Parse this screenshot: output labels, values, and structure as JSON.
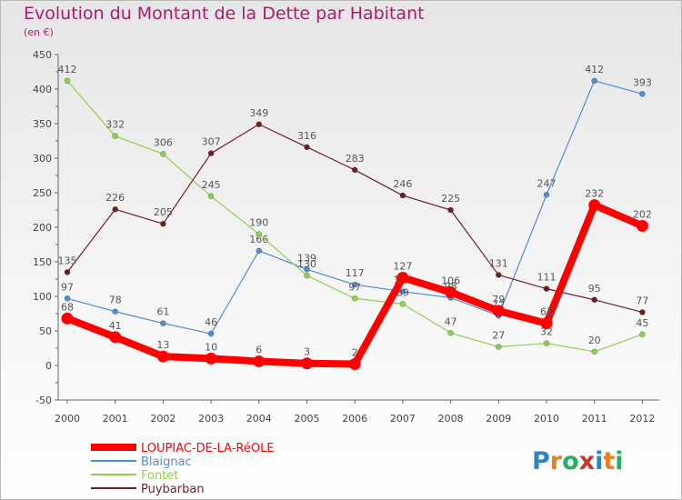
{
  "header": {
    "title": "Evolution du Montant de la Dette par Habitant",
    "unit": "(en €)"
  },
  "logo": {
    "text": "Proxiti",
    "letters": [
      "P",
      "r",
      "o",
      "x",
      "i",
      "t",
      "i"
    ],
    "colors": [
      "#2e86c1",
      "#e67e22",
      "#27ae60",
      "#c0392b",
      "#2e86c1",
      "#e67e22",
      "#27ae60"
    ]
  },
  "chart_data": {
    "type": "line",
    "x": [
      "2000",
      "2001",
      "2002",
      "2003",
      "2004",
      "2005",
      "2006",
      "2007",
      "2008",
      "2009",
      "2010",
      "2011",
      "2012"
    ],
    "ylim": [
      -50,
      450
    ],
    "yticks": [
      -50,
      0,
      50,
      100,
      150,
      200,
      250,
      300,
      350,
      400,
      450
    ],
    "grid": false,
    "legend_position": "bottom-left",
    "series": [
      {
        "name": "LOUPIAC-DE-LA-RéOLE",
        "color": "#ff0000",
        "values": [
          68,
          41,
          13,
          10,
          6,
          3,
          2,
          127,
          106,
          79,
          61,
          232,
          202
        ]
      },
      {
        "name": "Blaignac",
        "color": "#4f8fd0",
        "values": [
          97,
          78,
          61,
          46,
          166,
          139,
          117,
          107,
          98,
          72,
          247,
          412,
          393
        ]
      },
      {
        "name": "Fontet",
        "color": "#8fd04f",
        "values": [
          412,
          332,
          306,
          245,
          190,
          130,
          97,
          89,
          47,
          27,
          32,
          20,
          45
        ]
      },
      {
        "name": "Puybarban",
        "color": "#6f1f24",
        "values": [
          135,
          226,
          205,
          307,
          349,
          316,
          283,
          246,
          225,
          131,
          111,
          95,
          77
        ]
      }
    ]
  }
}
